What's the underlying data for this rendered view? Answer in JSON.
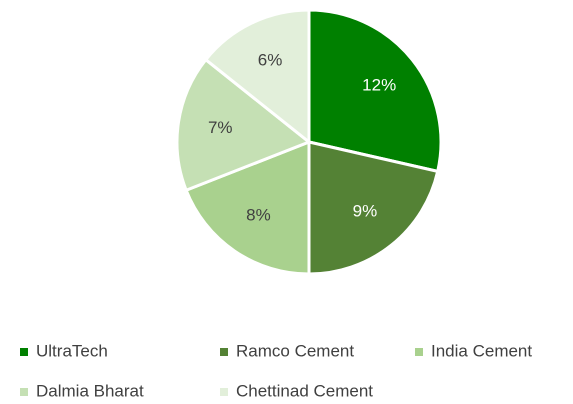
{
  "chart_data": {
    "type": "pie",
    "categories": [
      "UltraTech",
      "Ramco Cement",
      "India Cement",
      "Dalmia Bharat",
      "Chettinad Cement"
    ],
    "values": [
      12,
      9,
      8,
      7,
      6
    ],
    "value_labels": [
      "12%",
      "9%",
      "8%",
      "7%",
      "6%"
    ],
    "colors": [
      "#008000",
      "#548235",
      "#a9d18e",
      "#c5e0b4",
      "#e2efda"
    ],
    "legend": "bottom"
  }
}
